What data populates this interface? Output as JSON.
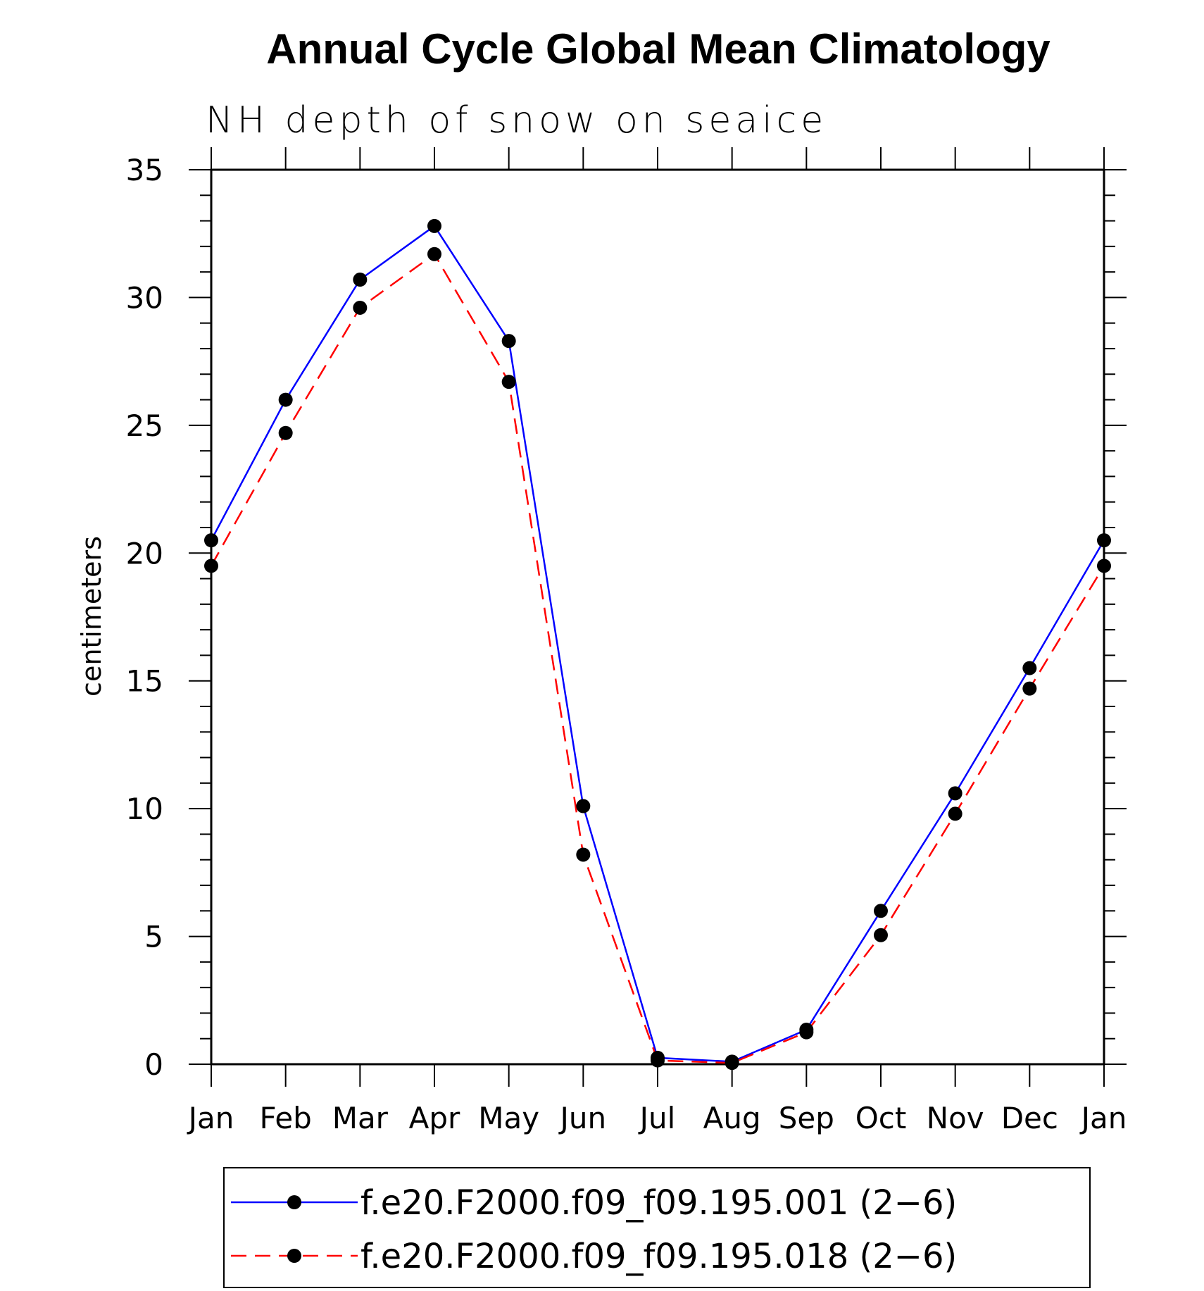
{
  "chart_data": {
    "type": "line",
    "title": "Annual Cycle Global Mean Climatology",
    "subtitle": "NH depth of snow on seaice",
    "xlabel": "",
    "ylabel": "centimeters",
    "categories": [
      "Jan",
      "Feb",
      "Mar",
      "Apr",
      "May",
      "Jun",
      "Jul",
      "Aug",
      "Sep",
      "Oct",
      "Nov",
      "Dec",
      "Jan"
    ],
    "ylim": [
      0,
      35
    ],
    "yticks": [
      0,
      5,
      10,
      15,
      20,
      25,
      30,
      35
    ],
    "series": [
      {
        "name": "f.e20.F2000.f09_f09.195.001 (2−6)",
        "color": "#0000ff",
        "dash": "solid",
        "marker": "filled-circle",
        "values": [
          20.5,
          26.0,
          30.7,
          32.8,
          28.3,
          10.1,
          0.25,
          0.1,
          1.35,
          6.0,
          10.6,
          15.5,
          20.5
        ]
      },
      {
        "name": "f.e20.F2000.f09_f09.195.018 (2−6)",
        "color": "#ff0000",
        "dash": "dashed",
        "marker": "filled-circle",
        "values": [
          19.5,
          24.7,
          29.6,
          31.7,
          26.7,
          8.2,
          0.15,
          0.05,
          1.25,
          5.05,
          9.8,
          14.7,
          19.5
        ]
      }
    ],
    "legend_position": "bottom-center",
    "grid": false
  }
}
